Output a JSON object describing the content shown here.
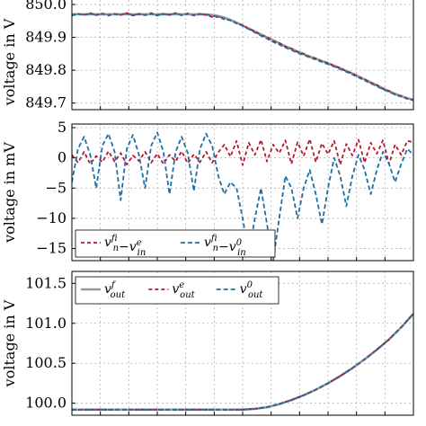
{
  "chart_data": [
    {
      "type": "line",
      "ylabel": "voltage in V",
      "ylim": [
        849.68,
        850.03
      ],
      "yticks": [
        "850.0",
        "849.9",
        "849.8",
        "849.7"
      ],
      "ytick_values": [
        850.0,
        849.9,
        849.8,
        849.7
      ],
      "x": [
        0,
        0.25,
        0.5,
        0.75,
        1,
        1.25,
        1.5,
        1.75,
        2,
        2.25,
        2.5,
        2.75,
        3,
        3.25,
        3.5,
        3.75,
        4,
        4.25,
        4.5,
        4.75,
        5,
        5.25,
        5.5,
        5.75,
        6,
        6.25,
        6.5,
        6.75,
        7,
        7.25,
        7.5,
        7.75,
        8,
        8.25,
        8.5,
        8.75,
        9,
        9.25,
        9.5,
        9.75,
        10,
        10.25,
        10.5,
        10.75,
        11,
        11.25,
        11.5,
        11.75,
        12,
        12.25,
        12.5,
        12.75,
        13,
        13.25,
        13.5,
        13.75,
        14
      ],
      "series": [
        {
          "color": "#9a9a9a",
          "dash": "solid",
          "values": [
            849.97,
            849.97,
            849.97,
            849.97,
            849.97,
            849.97,
            849.97,
            849.97,
            849.97,
            849.97,
            849.97,
            849.97,
            849.97,
            849.97,
            849.97,
            849.97,
            849.97,
            849.97,
            849.97,
            849.97,
            849.97,
            849.97,
            849.97,
            849.968,
            849.965,
            849.96,
            849.953,
            849.945,
            849.936,
            849.927,
            849.918,
            849.909,
            849.9,
            849.891,
            849.882,
            849.873,
            849.865,
            849.857,
            849.849,
            849.842,
            849.835,
            849.828,
            849.821,
            849.814,
            849.806,
            849.798,
            849.79,
            849.781,
            849.772,
            849.763,
            849.754,
            849.745,
            849.736,
            849.728,
            849.721,
            849.715,
            849.71
          ]
        },
        {
          "color": "#b5172c",
          "dash": "4 3",
          "values": [
            849.966,
            849.972,
            849.968,
            849.974,
            849.967,
            849.973,
            849.966,
            849.972,
            849.968,
            849.974,
            849.966,
            849.972,
            849.967,
            849.974,
            849.966,
            849.972,
            849.968,
            849.974,
            849.967,
            849.973,
            849.966,
            849.972,
            849.968,
            849.962,
            849.962,
            849.955,
            849.952,
            849.942,
            849.937,
            849.925,
            849.919,
            849.906,
            849.901,
            849.889,
            849.883,
            849.871,
            849.866,
            849.855,
            849.85,
            849.84,
            849.836,
            849.826,
            849.822,
            849.812,
            849.807,
            849.796,
            849.791,
            849.779,
            849.773,
            849.761,
            849.755,
            849.743,
            849.737,
            849.726,
            849.722,
            849.713,
            849.709
          ]
        },
        {
          "color": "#1f6fa0",
          "dash": "5 3",
          "values": [
            849.968,
            849.971,
            849.969,
            849.972,
            849.968,
            849.972,
            849.968,
            849.971,
            849.969,
            849.973,
            849.967,
            849.971,
            849.968,
            849.972,
            849.968,
            849.971,
            849.969,
            849.973,
            849.968,
            849.972,
            849.967,
            849.971,
            849.969,
            849.965,
            849.963,
            849.957,
            849.951,
            849.943,
            849.935,
            849.925,
            849.915,
            849.905,
            849.896,
            849.886,
            849.878,
            849.869,
            849.861,
            849.853,
            849.846,
            849.839,
            849.832,
            849.825,
            849.818,
            849.811,
            849.803,
            849.795,
            849.787,
            849.778,
            849.769,
            849.76,
            849.751,
            849.742,
            849.734,
            849.726,
            849.719,
            849.713,
            849.708
          ]
        }
      ]
    },
    {
      "type": "line",
      "ylabel": "voltage in mV",
      "ylim": [
        -17,
        5.6
      ],
      "yticks": [
        "5",
        "0",
        "−5",
        "−10",
        "−15"
      ],
      "ytick_values": [
        5,
        0,
        -5,
        -10,
        -15
      ],
      "legend_position": "lower-left",
      "legend": [
        {
          "pre": "v",
          "pre_sup": "f",
          "pre_sub": "in",
          "op": "−",
          "post": "v",
          "post_sup": "e",
          "post_sub": "in"
        },
        {
          "pre": "v",
          "pre_sup": "f",
          "pre_sub": "in",
          "op": "−",
          "post": "v",
          "post_sup": "0",
          "post_sub": "in"
        }
      ],
      "x": [
        0,
        0.25,
        0.5,
        0.75,
        1,
        1.25,
        1.5,
        1.75,
        2,
        2.25,
        2.5,
        2.75,
        3,
        3.25,
        3.5,
        3.75,
        4,
        4.25,
        4.5,
        4.75,
        5,
        5.25,
        5.5,
        5.75,
        6,
        6.25,
        6.5,
        6.75,
        7,
        7.25,
        7.5,
        7.75,
        8,
        8.25,
        8.5,
        8.75,
        9,
        9.25,
        9.5,
        9.75,
        10,
        10.25,
        10.5,
        10.75,
        11,
        11.25,
        11.5,
        11.75,
        12,
        12.25,
        12.5,
        12.75,
        13,
        13.25,
        13.5,
        13.75,
        14
      ],
      "series": [
        {
          "color": "#b5172c",
          "dash": "4 3",
          "values": [
            0.5,
            -0.8,
            1.0,
            -1.0,
            0.3,
            -0.7,
            1.1,
            -0.6,
            0.8,
            -1.1,
            0.4,
            -0.5,
            1.0,
            -0.8,
            0.7,
            -1.0,
            0.5,
            -0.6,
            1.1,
            -0.9,
            0.6,
            -0.7,
            1.0,
            -0.8,
            0.9,
            2.2,
            0.2,
            2.8,
            -1.2,
            2.5,
            0.5,
            3.0,
            -0.6,
            2.2,
            0.8,
            2.9,
            -1.0,
            2.6,
            0.3,
            3.1,
            -0.7,
            2.4,
            0.6,
            2.8,
            -1.1,
            2.3,
            0.4,
            3.0,
            -0.8,
            2.5,
            0.7,
            2.9,
            -1.0,
            2.2,
            0.5,
            2.8,
            2.6
          ]
        },
        {
          "color": "#1f6fa0",
          "dash": "5 3",
          "values": [
            -4.0,
            1.5,
            3.5,
            0.5,
            -5.0,
            2.0,
            4.0,
            1.0,
            -7.0,
            1.5,
            3.8,
            0.5,
            -5.0,
            2.0,
            4.2,
            1.0,
            -6.0,
            1.0,
            3.5,
            0.8,
            -5.5,
            1.5,
            4.0,
            2.0,
            -3.0,
            -6.0,
            -4.0,
            -5.0,
            -10.0,
            -16.0,
            -10.0,
            -5.0,
            -11.0,
            -17.0,
            -10.0,
            -3.0,
            -5.0,
            -10.0,
            -5.0,
            -2.0,
            -6.0,
            -11.0,
            -5.0,
            0.0,
            -3.0,
            -8.0,
            -3.0,
            0.5,
            -2.0,
            -6.0,
            -2.0,
            1.0,
            -1.0,
            -4.0,
            -1.0,
            1.5,
            0.5
          ]
        }
      ]
    },
    {
      "type": "line",
      "ylabel": "voltage in V",
      "ylim": [
        99.85,
        101.65
      ],
      "yticks": [
        "101.5",
        "101.0",
        "100.5",
        "100.0"
      ],
      "ytick_values": [
        101.5,
        101.0,
        100.5,
        100.0
      ],
      "legend_position": "top-left",
      "legend": [
        {
          "pre": "v",
          "pre_sup": "f",
          "pre_sub": "out"
        },
        {
          "pre": "v",
          "pre_sup": "e",
          "pre_sub": "out"
        },
        {
          "pre": "v",
          "pre_sup": "0",
          "pre_sub": "out"
        }
      ],
      "x": [
        0,
        0.5,
        1,
        1.5,
        2,
        2.5,
        3,
        3.5,
        4,
        4.5,
        5,
        5.5,
        6,
        6.5,
        7,
        7.5,
        8,
        8.5,
        9,
        9.5,
        10,
        10.5,
        11,
        11.5,
        12,
        12.5,
        13,
        13.5,
        14
      ],
      "series": [
        {
          "color": "#9a9a9a",
          "dash": "solid",
          "values": [
            99.92,
            99.92,
            99.92,
            99.92,
            99.92,
            99.92,
            99.92,
            99.92,
            99.92,
            99.92,
            99.92,
            99.92,
            99.92,
            99.92,
            99.92,
            99.93,
            99.95,
            99.99,
            100.04,
            100.1,
            100.17,
            100.25,
            100.34,
            100.44,
            100.55,
            100.67,
            100.8,
            100.95,
            101.12
          ]
        },
        {
          "color": "#b5172c",
          "dash": "4 3",
          "values": [
            99.92,
            99.92,
            99.92,
            99.92,
            99.92,
            99.92,
            99.92,
            99.92,
            99.92,
            99.92,
            99.92,
            99.92,
            99.92,
            99.92,
            99.92,
            99.93,
            99.95,
            99.99,
            100.04,
            100.1,
            100.17,
            100.25,
            100.34,
            100.44,
            100.55,
            100.67,
            100.8,
            100.95,
            101.12
          ]
        },
        {
          "color": "#1f6fa0",
          "dash": "5 3",
          "values": [
            99.92,
            99.92,
            99.92,
            99.92,
            99.92,
            99.92,
            99.92,
            99.92,
            99.92,
            99.92,
            99.92,
            99.92,
            99.92,
            99.92,
            99.92,
            99.93,
            99.95,
            99.99,
            100.04,
            100.1,
            100.17,
            100.25,
            100.34,
            100.44,
            100.55,
            100.67,
            100.8,
            100.95,
            101.12
          ]
        }
      ]
    }
  ]
}
